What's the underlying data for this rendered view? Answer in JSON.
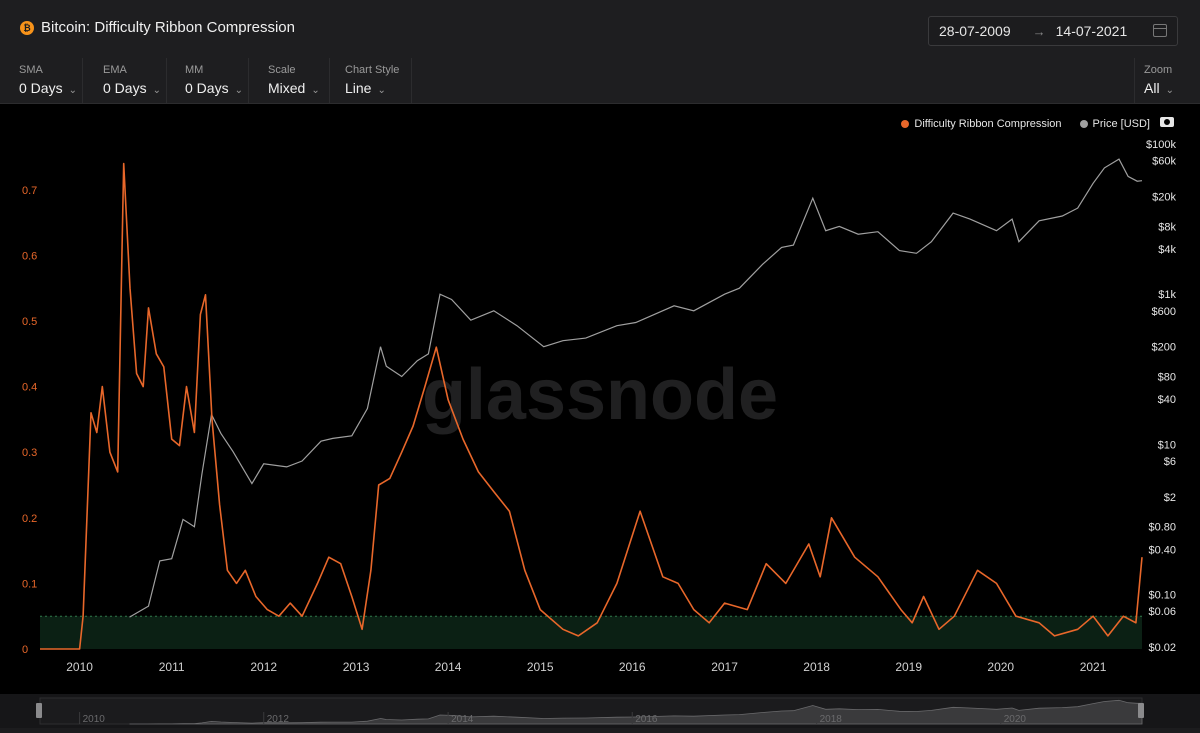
{
  "header": {
    "title": "Bitcoin: Difficulty Ribbon Compression",
    "date_from": "28-07-2009",
    "date_to": "14-07-2021"
  },
  "controls": [
    {
      "label": "SMA",
      "value": "0 Days"
    },
    {
      "label": "EMA",
      "value": "0 Days"
    },
    {
      "label": "MM",
      "value": "0 Days"
    },
    {
      "label": "Scale",
      "value": "Mixed"
    },
    {
      "label": "Chart Style",
      "value": "Line"
    }
  ],
  "zoom": {
    "label": "Zoom",
    "value": "All"
  },
  "legend": [
    {
      "name": "Difficulty Ribbon Compression",
      "color": "#e8672a"
    },
    {
      "name": "Price [USD]",
      "color": "#a0a0a0"
    }
  ],
  "watermark": "glassnode",
  "colors": {
    "accent": "#e8672a",
    "price": "#a0a0a0",
    "zone": "#0b2014",
    "zone_line": "#2f7a4a"
  },
  "icons": [
    "bitcoin-icon",
    "arrow-right-icon",
    "calendar-icon",
    "chevron-down-icon",
    "camera-icon"
  ],
  "chart_data": {
    "type": "line",
    "x_range": [
      "2009-07-28",
      "2021-07-14"
    ],
    "x_ticks": [
      "2010",
      "2011",
      "2012",
      "2013",
      "2014",
      "2015",
      "2016",
      "2017",
      "2018",
      "2019",
      "2020",
      "2021"
    ],
    "y_left_ticks": [
      "0",
      "0.1",
      "0.2",
      "0.3",
      "0.4",
      "0.5",
      "0.6",
      "0.7"
    ],
    "y_left_range": [
      0,
      0.75
    ],
    "y_right_ticks": [
      "$0.02",
      "$0.06",
      "$0.10",
      "$0.40",
      "$0.80",
      "$2",
      "$6",
      "$10",
      "$40",
      "$80",
      "$200",
      "$600",
      "$1k",
      "$4k",
      "$8k",
      "$20k",
      "$60k",
      "$100k"
    ],
    "y_right_scale": "log",
    "highlight_band": [
      0,
      0.05
    ],
    "grid": false,
    "legend_position": "top-right",
    "navigator_ticks": [
      "2010",
      "2012",
      "2014",
      "2016",
      "2018",
      "2020"
    ],
    "series": [
      {
        "name": "Difficulty Ribbon Compression",
        "axis": "left",
        "points": [
          [
            "2009-07-28",
            0
          ],
          [
            "2010-01-01",
            0
          ],
          [
            "2010-01-15",
            0.05
          ],
          [
            "2010-02-15",
            0.36
          ],
          [
            "2010-03-10",
            0.33
          ],
          [
            "2010-04-01",
            0.4
          ],
          [
            "2010-05-01",
            0.3
          ],
          [
            "2010-06-01",
            0.27
          ],
          [
            "2010-06-25",
            0.74
          ],
          [
            "2010-07-20",
            0.55
          ],
          [
            "2010-08-15",
            0.42
          ],
          [
            "2010-09-10",
            0.4
          ],
          [
            "2010-10-01",
            0.52
          ],
          [
            "2010-11-01",
            0.45
          ],
          [
            "2010-12-01",
            0.43
          ],
          [
            "2011-01-01",
            0.32
          ],
          [
            "2011-02-01",
            0.31
          ],
          [
            "2011-03-01",
            0.4
          ],
          [
            "2011-04-01",
            0.33
          ],
          [
            "2011-04-25",
            0.51
          ],
          [
            "2011-05-15",
            0.54
          ],
          [
            "2011-06-10",
            0.35
          ],
          [
            "2011-07-10",
            0.22
          ],
          [
            "2011-08-10",
            0.12
          ],
          [
            "2011-09-15",
            0.1
          ],
          [
            "2011-10-20",
            0.12
          ],
          [
            "2011-12-01",
            0.08
          ],
          [
            "2012-01-15",
            0.06
          ],
          [
            "2012-03-01",
            0.05
          ],
          [
            "2012-04-15",
            0.07
          ],
          [
            "2012-06-01",
            0.05
          ],
          [
            "2012-08-01",
            0.1
          ],
          [
            "2012-09-15",
            0.14
          ],
          [
            "2012-11-01",
            0.13
          ],
          [
            "2012-12-15",
            0.08
          ],
          [
            "2013-01-25",
            0.03
          ],
          [
            "2013-03-01",
            0.12
          ],
          [
            "2013-04-01",
            0.25
          ],
          [
            "2013-05-15",
            0.26
          ],
          [
            "2013-07-01",
            0.3
          ],
          [
            "2013-08-15",
            0.34
          ],
          [
            "2013-10-01",
            0.4
          ],
          [
            "2013-11-15",
            0.46
          ],
          [
            "2014-01-01",
            0.38
          ],
          [
            "2014-03-01",
            0.32
          ],
          [
            "2014-05-01",
            0.27
          ],
          [
            "2014-07-01",
            0.24
          ],
          [
            "2014-09-01",
            0.21
          ],
          [
            "2014-11-01",
            0.12
          ],
          [
            "2015-01-01",
            0.06
          ],
          [
            "2015-04-01",
            0.03
          ],
          [
            "2015-06-01",
            0.02
          ],
          [
            "2015-08-15",
            0.04
          ],
          [
            "2015-11-01",
            0.1
          ],
          [
            "2016-02-01",
            0.21
          ],
          [
            "2016-05-01",
            0.11
          ],
          [
            "2016-07-01",
            0.1
          ],
          [
            "2016-09-01",
            0.06
          ],
          [
            "2016-11-01",
            0.04
          ],
          [
            "2017-01-01",
            0.07
          ],
          [
            "2017-04-01",
            0.06
          ],
          [
            "2017-06-15",
            0.13
          ],
          [
            "2017-09-01",
            0.1
          ],
          [
            "2017-12-01",
            0.16
          ],
          [
            "2018-01-15",
            0.11
          ],
          [
            "2018-03-01",
            0.2
          ],
          [
            "2018-06-01",
            0.14
          ],
          [
            "2018-09-01",
            0.11
          ],
          [
            "2018-12-01",
            0.06
          ],
          [
            "2019-01-15",
            0.04
          ],
          [
            "2019-03-01",
            0.08
          ],
          [
            "2019-05-01",
            0.03
          ],
          [
            "2019-07-01",
            0.05
          ],
          [
            "2019-10-01",
            0.12
          ],
          [
            "2019-12-15",
            0.1
          ],
          [
            "2020-03-01",
            0.05
          ],
          [
            "2020-06-01",
            0.04
          ],
          [
            "2020-08-01",
            0.02
          ],
          [
            "2020-11-01",
            0.03
          ],
          [
            "2021-01-01",
            0.05
          ],
          [
            "2021-03-01",
            0.02
          ],
          [
            "2021-05-01",
            0.05
          ],
          [
            "2021-06-20",
            0.04
          ],
          [
            "2021-07-14",
            0.14
          ]
        ]
      },
      {
        "name": "Price [USD]",
        "axis": "right",
        "points": [
          [
            "2010-07-18",
            0.05
          ],
          [
            "2010-10-01",
            0.07
          ],
          [
            "2010-11-15",
            0.28
          ],
          [
            "2011-01-01",
            0.3
          ],
          [
            "2011-02-15",
            1.0
          ],
          [
            "2011-04-01",
            0.8
          ],
          [
            "2011-05-01",
            4
          ],
          [
            "2011-06-08",
            25
          ],
          [
            "2011-07-15",
            14
          ],
          [
            "2011-09-01",
            8
          ],
          [
            "2011-11-15",
            3
          ],
          [
            "2012-01-01",
            5.5
          ],
          [
            "2012-04-01",
            5
          ],
          [
            "2012-06-01",
            6
          ],
          [
            "2012-08-15",
            11
          ],
          [
            "2012-10-01",
            12
          ],
          [
            "2012-12-15",
            13
          ],
          [
            "2013-02-15",
            30
          ],
          [
            "2013-04-08",
            200
          ],
          [
            "2013-05-01",
            110
          ],
          [
            "2013-07-01",
            80
          ],
          [
            "2013-09-01",
            130
          ],
          [
            "2013-10-15",
            160
          ],
          [
            "2013-11-30",
            1000
          ],
          [
            "2014-01-15",
            850
          ],
          [
            "2014-04-01",
            450
          ],
          [
            "2014-07-01",
            600
          ],
          [
            "2014-10-01",
            380
          ],
          [
            "2015-01-15",
            200
          ],
          [
            "2015-04-01",
            240
          ],
          [
            "2015-07-01",
            260
          ],
          [
            "2015-11-01",
            380
          ],
          [
            "2016-01-15",
            420
          ],
          [
            "2016-06-15",
            700
          ],
          [
            "2016-09-01",
            600
          ],
          [
            "2017-01-01",
            1000
          ],
          [
            "2017-03-01",
            1200
          ],
          [
            "2017-06-01",
            2500
          ],
          [
            "2017-08-15",
            4200
          ],
          [
            "2017-10-01",
            4500
          ],
          [
            "2017-12-17",
            19000
          ],
          [
            "2018-02-06",
            7000
          ],
          [
            "2018-04-01",
            8000
          ],
          [
            "2018-06-15",
            6300
          ],
          [
            "2018-09-01",
            6800
          ],
          [
            "2018-11-25",
            3800
          ],
          [
            "2019-02-01",
            3500
          ],
          [
            "2019-04-01",
            5000
          ],
          [
            "2019-06-26",
            12000
          ],
          [
            "2019-09-01",
            10000
          ],
          [
            "2019-12-15",
            7000
          ],
          [
            "2020-02-15",
            10000
          ],
          [
            "2020-03-13",
            5000
          ],
          [
            "2020-06-01",
            9500
          ],
          [
            "2020-09-01",
            11000
          ],
          [
            "2020-11-01",
            14000
          ],
          [
            "2021-01-01",
            30000
          ],
          [
            "2021-02-15",
            48000
          ],
          [
            "2021-04-14",
            63000
          ],
          [
            "2021-05-20",
            37000
          ],
          [
            "2021-06-25",
            32000
          ],
          [
            "2021-07-14",
            32500
          ]
        ]
      }
    ]
  }
}
